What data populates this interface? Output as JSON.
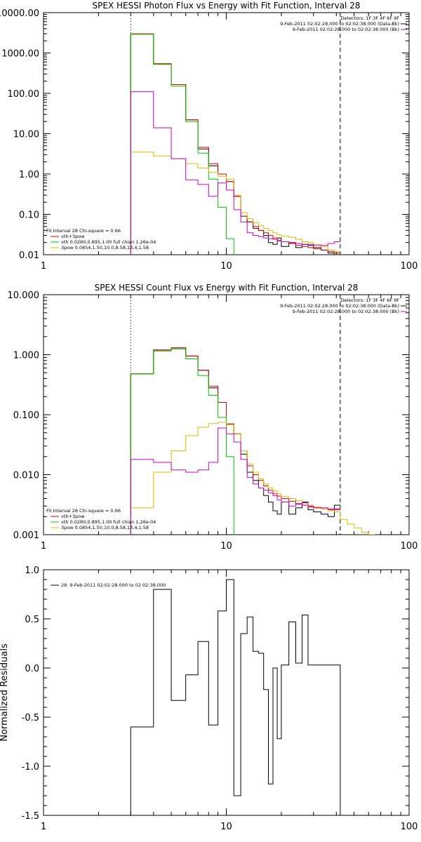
{
  "chart_data": [
    {
      "type": "line",
      "title": "SPEX HESSI Photon Flux vs Energy with Fit Function, Interval 28",
      "ylabel": "",
      "xscale": "log",
      "yscale": "log",
      "xlim": [
        1,
        100
      ],
      "ylim": [
        0.01,
        10000
      ],
      "xticks": [
        1,
        10,
        100
      ],
      "xticklabels": [
        "1",
        "10",
        "100"
      ],
      "yticks": [
        0.01,
        0.1,
        1,
        10,
        100,
        1000,
        10000
      ],
      "yticklabels": [
        "0.01",
        "0.10",
        "1.00",
        "10.00",
        "100.00",
        "1000.00",
        "10000.00"
      ],
      "vlines": [
        {
          "x": 3,
          "style": "dotted"
        },
        {
          "x": 42,
          "style": "dashed"
        }
      ],
      "header_lines": [
        {
          "text": "Detectors: 1F 3F 4F 6F 9F",
          "color": "#000000"
        },
        {
          "text": "9-Feb-2011 02:02:28.000 to 02:02:38.000 (Data-Bk)",
          "color": "#000000"
        },
        {
          "text": "9-Feb-2011 02:02:28.000 to 02:02:38.000 (Bk)",
          "color": "#cc00cc"
        }
      ],
      "legend_lines": [
        {
          "text": "Fit Interval 28   Chi-square = 0.66",
          "color": "#000000"
        },
        {
          "text": "vth+3pow",
          "color": "#dd0000"
        },
        {
          "text": "vth 0.0280,0.895,1.00  full chian 1.26e-04",
          "color": "#00cc00"
        },
        {
          "text": "3pow 0.0854,1.50,10.0,8.58,13.4,1.58",
          "color": "#ddbb00"
        }
      ],
      "series": [
        {
          "color": "#000000",
          "edges": [
            3,
            4,
            5,
            6,
            7,
            8,
            9,
            10,
            11,
            12,
            13,
            14,
            15,
            16,
            17,
            18,
            19,
            20,
            22,
            24,
            26,
            28,
            30,
            33,
            36,
            39,
            42
          ],
          "values": [
            2950,
            540,
            165,
            22,
            4.2,
            1.6,
            1.0,
            0.65,
            0.28,
            0.09,
            0.065,
            0.045,
            0.04,
            0.03,
            0.02,
            0.018,
            0.026,
            0.016,
            0.02,
            0.015,
            0.018,
            0.017,
            0.015,
            0.013,
            0.011,
            0.01
          ]
        },
        {
          "color": "#dd0000",
          "edges": [
            3,
            4,
            5,
            6,
            7,
            8,
            9,
            10,
            11,
            12,
            13,
            14,
            15,
            16,
            17,
            18,
            19,
            20,
            22,
            24,
            26,
            28,
            30,
            33,
            36,
            39,
            42
          ],
          "values": [
            3000,
            540,
            165,
            22,
            4.6,
            1.8,
            1.0,
            0.65,
            0.28,
            0.09,
            0.065,
            0.05,
            0.04,
            0.035,
            0.03,
            0.026,
            0.023,
            0.021,
            0.019,
            0.017,
            0.016,
            0.015,
            0.014,
            0.013,
            0.012,
            0.011
          ]
        },
        {
          "color": "#00cc00",
          "edges": [
            3,
            4,
            5,
            6,
            7,
            8,
            9,
            10,
            11
          ],
          "values": [
            2900,
            520,
            150,
            20,
            3.3,
            0.75,
            0.15,
            0.025
          ]
        },
        {
          "color": "#ddbb00",
          "edges": [
            3,
            4,
            5,
            6,
            7,
            8,
            9,
            10,
            11,
            12,
            13,
            14,
            15,
            16,
            17,
            18,
            19,
            20,
            22,
            24,
            26,
            28,
            30,
            33,
            36,
            39,
            42
          ],
          "values": [
            3.5,
            2.8,
            2.4,
            1.8,
            1.4,
            1.1,
            0.88,
            0.75,
            0.3,
            0.11,
            0.078,
            0.062,
            0.052,
            0.045,
            0.04,
            0.035,
            0.031,
            0.029,
            0.027,
            0.024,
            0.021,
            0.02,
            0.018,
            0.016,
            0.013,
            0.012
          ]
        },
        {
          "color": "#cc00cc",
          "edges": [
            3,
            4,
            5,
            6,
            7,
            8,
            9,
            10,
            11,
            12,
            13,
            14,
            15,
            16,
            17,
            18,
            19,
            20,
            22,
            24,
            26,
            28,
            30,
            33,
            36,
            39,
            42
          ],
          "values": [
            110,
            14,
            2.4,
            0.72,
            0.55,
            0.28,
            0.6,
            0.4,
            0.13,
            0.065,
            0.035,
            0.03,
            0.028,
            0.026,
            0.025,
            0.024,
            0.022,
            0.021,
            0.02,
            0.019,
            0.018,
            0.018,
            0.017,
            0.017,
            0.019,
            0.021
          ]
        }
      ]
    },
    {
      "type": "line",
      "title": "SPEX HESSI Count Flux vs Energy with Fit Function, Interval 28",
      "ylabel": "",
      "xscale": "log",
      "yscale": "log",
      "xlim": [
        1,
        100
      ],
      "ylim": [
        0.001,
        10
      ],
      "xticks": [
        1,
        10,
        100
      ],
      "xticklabels": [
        "1",
        "10",
        "100"
      ],
      "yticks": [
        0.001,
        0.01,
        0.1,
        1,
        10
      ],
      "yticklabels": [
        "0.001",
        "0.010",
        "0.100",
        "1.000",
        "10.000"
      ],
      "vlines": [
        {
          "x": 3,
          "style": "dotted"
        },
        {
          "x": 42,
          "style": "dashed"
        }
      ],
      "header_lines": [
        {
          "text": "Detectors: 1F 3F 4F 6F 9F",
          "color": "#000000"
        },
        {
          "text": "9-Feb-2011 02:02:28.000 to 02:02:38.000 (Data-Bk)",
          "color": "#000000"
        },
        {
          "text": "9-Feb-2011 02:02:28.000 to 02:02:38.000 (Bk)",
          "color": "#cc00cc"
        }
      ],
      "legend_lines": [
        {
          "text": "Fit Interval 28   Chi-square = 0.66",
          "color": "#000000"
        },
        {
          "text": "vth+3pow",
          "color": "#dd0000"
        },
        {
          "text": "vth 0.0280,0.895,1.00  full chian 1.26e-04",
          "color": "#00cc00"
        },
        {
          "text": "3pow 0.0854,1.50,10.0,8.58,13.4,1.58",
          "color": "#ddbb00"
        }
      ],
      "series": [
        {
          "color": "#000000",
          "edges": [
            3,
            4,
            5,
            6,
            7,
            8,
            9,
            10,
            11,
            12,
            13,
            14,
            15,
            16,
            17,
            18,
            19,
            20,
            22,
            24,
            26,
            28,
            30,
            33,
            36,
            39,
            42
          ],
          "values": [
            0.48,
            1.2,
            1.3,
            0.95,
            0.55,
            0.28,
            0.16,
            0.07,
            0.048,
            0.022,
            0.011,
            0.008,
            0.006,
            0.0045,
            0.0035,
            0.0025,
            0.0022,
            0.0035,
            0.0022,
            0.0028,
            0.0035,
            0.0026,
            0.0024,
            0.0022,
            0.002,
            0.0031
          ]
        },
        {
          "color": "#dd0000",
          "edges": [
            3,
            4,
            5,
            6,
            7,
            8,
            9,
            10,
            11,
            12,
            13,
            14,
            15,
            16,
            17,
            18,
            19,
            20,
            22,
            24,
            26,
            28,
            30,
            33,
            36,
            39,
            42
          ],
          "values": [
            0.48,
            1.2,
            1.3,
            0.95,
            0.55,
            0.3,
            0.16,
            0.07,
            0.048,
            0.025,
            0.014,
            0.01,
            0.008,
            0.0065,
            0.0055,
            0.0048,
            0.0044,
            0.004,
            0.0036,
            0.0033,
            0.0031,
            0.0029,
            0.0028,
            0.0027,
            0.0026,
            0.0027
          ]
        },
        {
          "color": "#00cc00",
          "edges": [
            3,
            4,
            5,
            6,
            7,
            8,
            9,
            10,
            11
          ],
          "values": [
            0.48,
            1.15,
            1.25,
            0.85,
            0.45,
            0.21,
            0.09,
            0.02
          ]
        },
        {
          "color": "#ddbb00",
          "edges": [
            3,
            4,
            5,
            6,
            7,
            8,
            9,
            10,
            11,
            12,
            13,
            14,
            15,
            16,
            17,
            18,
            19,
            20,
            22,
            24,
            26,
            28,
            30,
            33,
            36,
            39,
            42,
            46,
            50,
            55,
            60,
            65
          ],
          "values": [
            0.0028,
            0.011,
            0.025,
            0.045,
            0.062,
            0.071,
            0.075,
            0.068,
            0.048,
            0.025,
            0.015,
            0.011,
            0.0085,
            0.007,
            0.006,
            0.0054,
            0.0048,
            0.0043,
            0.004,
            0.0037,
            0.0034,
            0.0031,
            0.0029,
            0.0027,
            0.0025,
            0.0024,
            0.0018,
            0.0015,
            0.0013,
            0.0011,
            0.001
          ]
        },
        {
          "color": "#cc00cc",
          "edges": [
            3,
            4,
            5,
            6,
            7,
            8,
            9,
            10,
            11,
            12,
            13,
            14,
            15,
            16,
            17,
            18,
            19,
            20,
            22,
            24,
            26,
            28,
            30,
            33,
            36,
            39,
            42
          ],
          "values": [
            0.018,
            0.016,
            0.012,
            0.011,
            0.012,
            0.016,
            0.06,
            0.048,
            0.035,
            0.018,
            0.009,
            0.007,
            0.006,
            0.0055,
            0.005,
            0.0045,
            0.0038,
            0.0035,
            0.003,
            0.0032,
            0.0034,
            0.003,
            0.0028,
            0.0028,
            0.0027,
            0.0026
          ]
        }
      ]
    },
    {
      "type": "line",
      "title": "",
      "ylabel": "Normalized Residuals",
      "xscale": "log",
      "yscale": "linear",
      "xlim": [
        1,
        100
      ],
      "ylim": [
        -1.5,
        1.0
      ],
      "xticks": [
        1,
        10,
        100
      ],
      "xticklabels": [
        "1",
        "10",
        "100"
      ],
      "yticks": [
        -1.5,
        -1.0,
        -0.5,
        0.0,
        0.5,
        1.0
      ],
      "yticklabels": [
        "-1.5",
        "-1.0",
        "-0.5",
        "0.0",
        "0.5",
        "1.0"
      ],
      "vlines": [],
      "header_lines": [],
      "legend_lines": [
        {
          "text": "28.  9-Feb-2011 02:02:28.000 to 02:02:38.000",
          "color": "#000000"
        }
      ],
      "series": [
        {
          "color": "#000000",
          "edges": [
            3,
            4,
            5,
            6,
            7,
            8,
            9,
            10,
            11,
            12,
            13,
            14,
            15,
            16,
            17,
            18,
            19,
            20,
            22,
            24,
            26,
            28,
            30,
            33,
            36,
            39,
            42
          ],
          "values": [
            -0.6,
            0.8,
            -0.33,
            -0.07,
            0.27,
            -0.58,
            0.58,
            0.9,
            -1.3,
            0.35,
            0.52,
            0.17,
            0.15,
            -0.22,
            -1.18,
            0.0,
            -0.72,
            0.03,
            0.47,
            0.05,
            0.54,
            0.03,
            0.03,
            0.03,
            0.03,
            0.03
          ]
        }
      ]
    }
  ]
}
